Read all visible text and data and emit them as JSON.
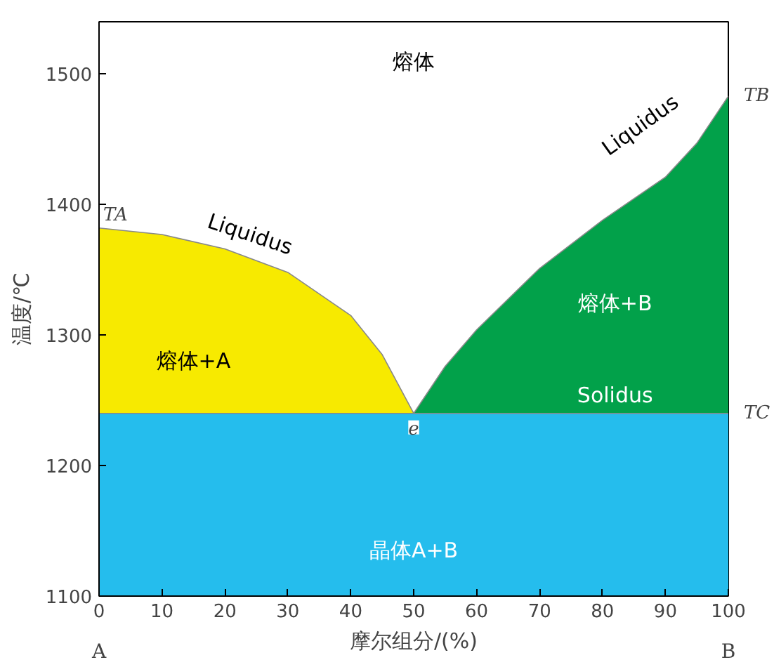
{
  "chart_data": {
    "type": "area",
    "xlabel": "摩尔组分/(%)",
    "ylabel": "温度/℃",
    "xlim": [
      0,
      100
    ],
    "ylim": [
      1100,
      1540
    ],
    "xticks": [
      0,
      10,
      20,
      30,
      40,
      50,
      60,
      70,
      80,
      90,
      100
    ],
    "yticks": [
      1100,
      1200,
      1300,
      1400,
      1500
    ],
    "grid": false,
    "series": [
      {
        "color": "#f7ea00",
        "x": [
          0,
          10,
          20,
          30,
          40,
          45,
          50
        ],
        "values": [
          1382,
          1377,
          1366,
          1348,
          1315,
          1285,
          1240
        ]
      },
      {
        "color": "#02a14a",
        "x": [
          50,
          55,
          60,
          70,
          80,
          90,
          95,
          100
        ],
        "values": [
          1240,
          1276,
          1304,
          1351,
          1388,
          1421,
          1447,
          1483
        ]
      },
      {
        "color": "#25bded",
        "x": [
          0,
          100
        ],
        "values": [
          1240,
          1240
        ]
      }
    ],
    "annotations": [
      "熔体",
      "熔体+A",
      "熔体+B",
      "Solidus",
      "晶体A+B",
      "Liquidus",
      "Liquidus",
      {
        "text": "e",
        "x": 50,
        "y": 1240
      },
      {
        "text": "TA",
        "x": 0,
        "y": 1382
      },
      {
        "text": "TB",
        "x": 100,
        "y": 1483
      },
      {
        "text": "TC",
        "x": 100,
        "y": 1240
      },
      "A",
      "B"
    ]
  }
}
